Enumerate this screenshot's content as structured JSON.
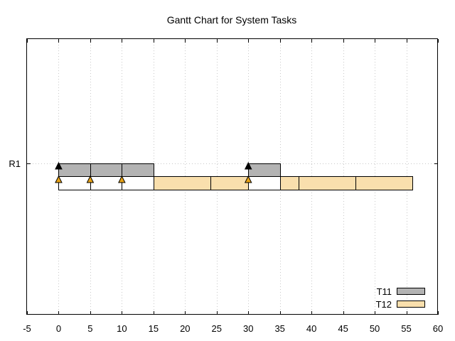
{
  "chart_data": {
    "type": "gantt",
    "title": "Gantt Chart for System Tasks",
    "xlim": [
      -5,
      60
    ],
    "x_ticks": [
      -5,
      0,
      5,
      10,
      15,
      20,
      25,
      30,
      35,
      40,
      45,
      50,
      55,
      60
    ],
    "grid": true,
    "legend_position": "bottom-right",
    "rows": [
      {
        "label": "R1",
        "y": 0
      }
    ],
    "series": [
      {
        "name": "T11",
        "color": "#b3b3b3",
        "lane": "upper",
        "segments": [
          [
            0,
            5
          ],
          [
            5,
            10
          ],
          [
            10,
            15
          ],
          [
            30,
            35
          ]
        ],
        "releases": [
          0,
          30
        ],
        "release_color": "#000000"
      },
      {
        "name": "T12",
        "color": "#f9dfad",
        "lane": "lower",
        "segments": [
          [
            0,
            5
          ],
          [
            5,
            10
          ],
          [
            10,
            15
          ],
          [
            15,
            24
          ],
          [
            24,
            30
          ],
          [
            30,
            35
          ],
          [
            35,
            38
          ],
          [
            38,
            47
          ],
          [
            47,
            56
          ]
        ],
        "filled": [
          [
            15,
            24
          ],
          [
            24,
            30
          ],
          [
            35,
            38
          ],
          [
            38,
            47
          ],
          [
            47,
            56
          ]
        ],
        "releases": [
          0,
          5,
          10,
          30
        ],
        "release_color": "#e8a317"
      }
    ]
  }
}
